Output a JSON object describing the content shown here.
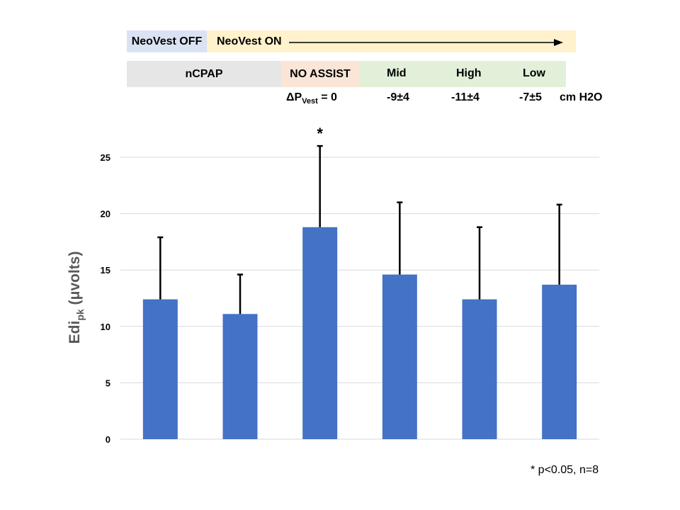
{
  "header": {
    "vest_off": "NeoVest OFF",
    "vest_on": "NeoVest ON",
    "conditions": {
      "ncpap": "nCPAP",
      "no_assist": "NO ASSIST",
      "mid": "Mid",
      "high": "High",
      "low": "Low"
    },
    "delta_p": {
      "prefix": "ΔP",
      "subscript": "Vest",
      "suffix": " = 0"
    },
    "pressures": {
      "mid": "-9±4",
      "high": "-11±4",
      "low": "-7±5"
    },
    "unit": "cm H2O"
  },
  "colors": {
    "vest_off": "#DAE3F3",
    "vest_on": "#FFF2CC",
    "ncpap": "#E7E6E6",
    "no_assist": "#FBE5D6",
    "assist": "#E2F0D9",
    "bar": "#4472C4",
    "grid": "#D9D9D9"
  },
  "chart_data": {
    "type": "bar",
    "title": "",
    "xlabel": "",
    "ylabel": {
      "main": "Edi",
      "sub": "pk",
      "unit": " (μvolts)"
    },
    "ylim": [
      0,
      25
    ],
    "yticks": [
      0,
      5,
      10,
      15,
      20,
      25
    ],
    "grid": true,
    "categories": [
      "nCPAP",
      "NO ASSIST",
      "NO ASSIST",
      "Mid",
      "High",
      "Low"
    ],
    "values": [
      12.4,
      11.1,
      18.8,
      14.6,
      12.4,
      13.7
    ],
    "error_upper": [
      5.5,
      3.5,
      7.2,
      6.4,
      6.4,
      7.1
    ],
    "significance": [
      "",
      "",
      "*",
      "",
      "",
      ""
    ]
  },
  "footnote": "* p<0.05, n=8"
}
